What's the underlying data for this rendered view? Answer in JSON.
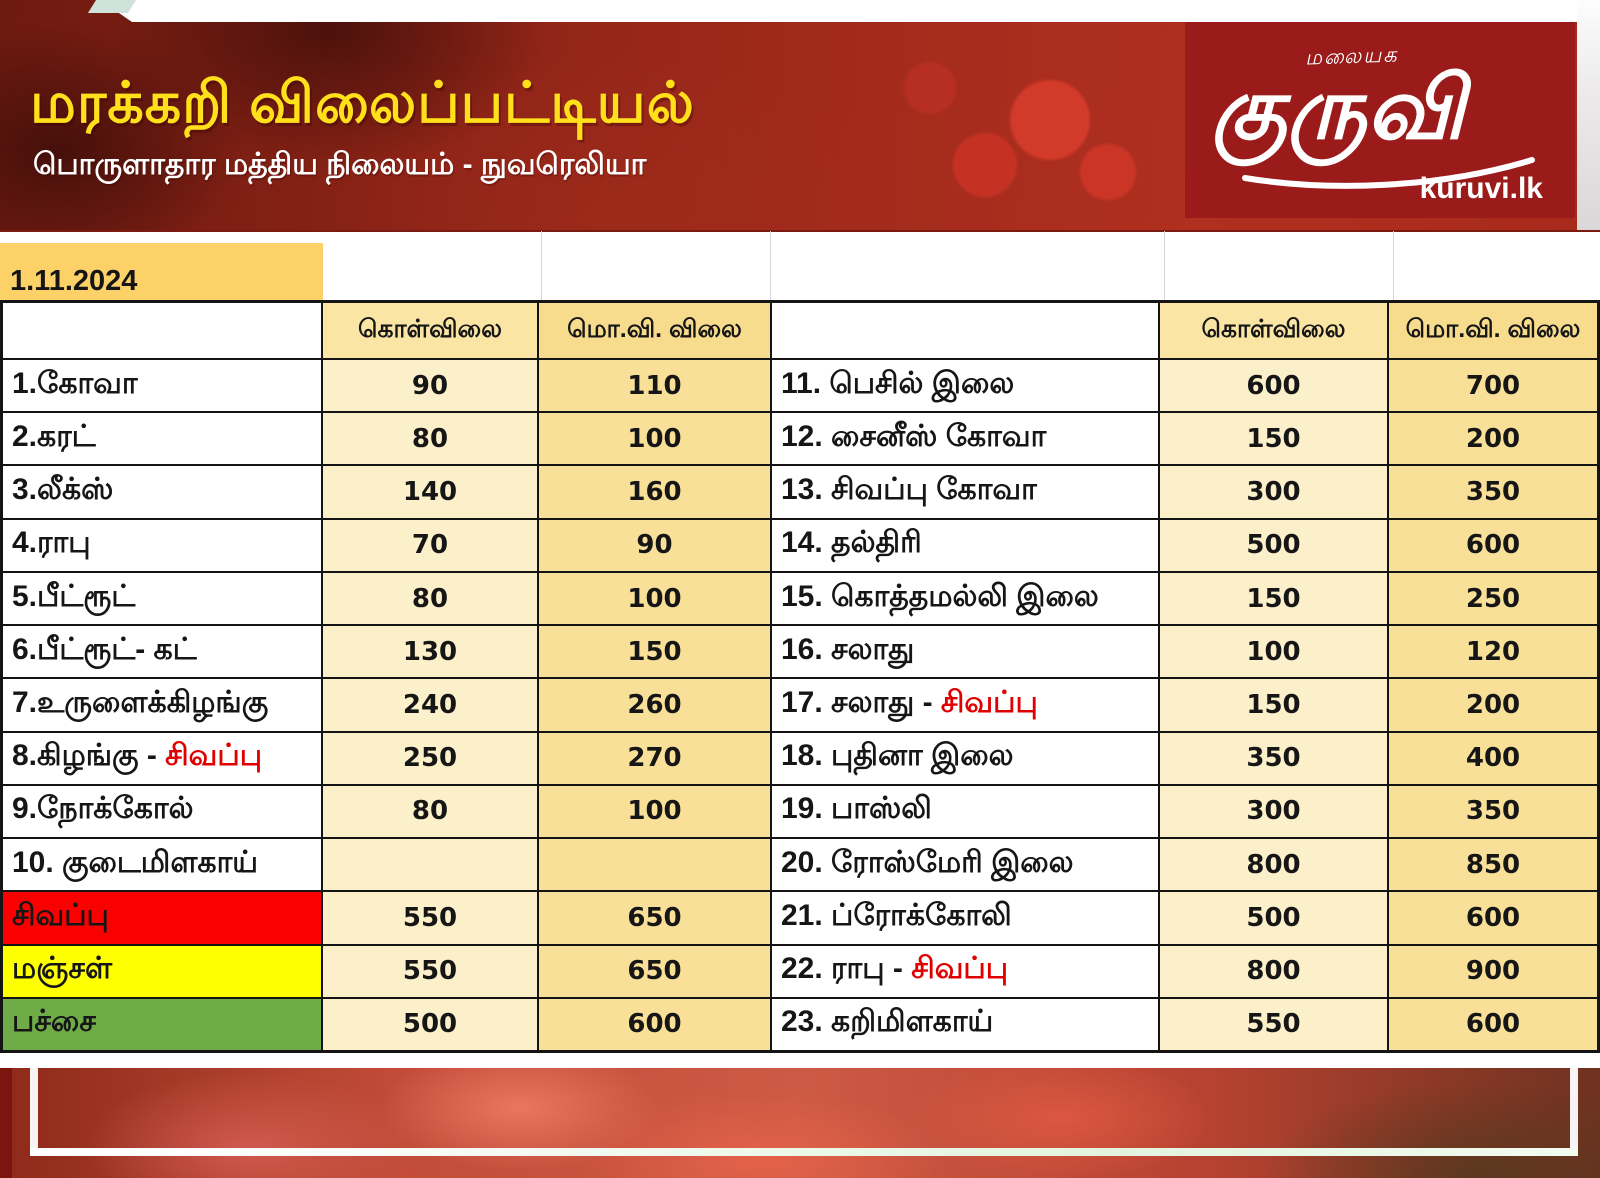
{
  "header": {
    "title": "மரக்கறி விலைப்பட்டியல்",
    "subtitle": "பொருளாதார மத்திய நிலையம் - நுவரெலியா",
    "date": "1.11.2024",
    "logo": {
      "top_text": "மலையக",
      "main_text": "குருவி",
      "site": "kuruvi.lk"
    }
  },
  "columns": {
    "buy": "கொள்விலை",
    "wholesale": "மொ.வி. விலை"
  },
  "colors": {
    "title_yellow": "#ffe01a",
    "logo_red": "#9b1a1a",
    "date_badge": "#fcd167",
    "buy_cell": "#fcf0cb",
    "wholesale_cell": "#f9e099",
    "red_text": "#e00000",
    "row_red": "#fb0000",
    "row_yellow": "#feff00",
    "row_green": "#6fac47"
  },
  "left_table": {
    "rows": [
      {
        "name": "1.கோவா",
        "red": "",
        "buy": "90",
        "ws": "110",
        "bg": ""
      },
      {
        "name": "2.கரட்",
        "red": "",
        "buy": "80",
        "ws": "100",
        "bg": ""
      },
      {
        "name": "3.லீக்ஸ்",
        "red": "",
        "buy": "140",
        "ws": "160",
        "bg": ""
      },
      {
        "name": "4.ராபு",
        "red": "",
        "buy": "70",
        "ws": "90",
        "bg": ""
      },
      {
        "name": "5.பீட்ரூட்",
        "red": "",
        "buy": "80",
        "ws": "100",
        "bg": ""
      },
      {
        "name": "6.பீட்ரூட்- கட்",
        "red": "",
        "buy": "130",
        "ws": "150",
        "bg": ""
      },
      {
        "name": "7.உருளைக்கிழங்கு",
        "red": "",
        "buy": "240",
        "ws": "260",
        "bg": ""
      },
      {
        "name": "8.கிழங்கு - ",
        "red": "சிவப்பு",
        "buy": "250",
        "ws": "270",
        "bg": ""
      },
      {
        "name": "9.நோக்கோல்",
        "red": "",
        "buy": "80",
        "ws": "100",
        "bg": ""
      },
      {
        "name": "10. குடைமிளகாய்",
        "red": "",
        "buy": "",
        "ws": "",
        "bg": ""
      },
      {
        "name": "சிவப்பு",
        "red": "",
        "buy": "550",
        "ws": "650",
        "bg": "#fb0000"
      },
      {
        "name": "மஞ்சள்",
        "red": "",
        "buy": "550",
        "ws": "650",
        "bg": "#feff00"
      },
      {
        "name": "பச்சை",
        "red": "",
        "buy": "500",
        "ws": "600",
        "bg": "#6fac47"
      }
    ]
  },
  "right_table": {
    "rows": [
      {
        "name": "11. பெசில் இலை",
        "red": "",
        "buy": "600",
        "ws": "700",
        "bg": ""
      },
      {
        "name": "12. சைனீஸ் கோவா",
        "red": "",
        "buy": "150",
        "ws": "200",
        "bg": ""
      },
      {
        "name": "13. சிவப்பு கோவா",
        "red": "",
        "buy": "300",
        "ws": "350",
        "bg": ""
      },
      {
        "name": "14. தல்திரி",
        "red": "",
        "buy": "500",
        "ws": "600",
        "bg": ""
      },
      {
        "name": "15. கொத்தமல்லி இலை",
        "red": "",
        "buy": "150",
        "ws": "250",
        "bg": ""
      },
      {
        "name": "16. சலாது",
        "red": "",
        "buy": "100",
        "ws": "120",
        "bg": ""
      },
      {
        "name": "17. சலாது - ",
        "red": "சிவப்பு",
        "buy": "150",
        "ws": "200",
        "bg": ""
      },
      {
        "name": "18. புதினா இலை",
        "red": "",
        "buy": "350",
        "ws": "400",
        "bg": ""
      },
      {
        "name": "19. பாஸ்லி",
        "red": "",
        "buy": "300",
        "ws": "350",
        "bg": ""
      },
      {
        "name": "20. ரோஸ்மேரி இலை",
        "red": "",
        "buy": "800",
        "ws": "850",
        "bg": ""
      },
      {
        "name": "21. ப்ரோக்கோலி",
        "red": "",
        "buy": "500",
        "ws": "600",
        "bg": ""
      },
      {
        "name": "22. ராபு - ",
        "red": "சிவப்பு",
        "buy": "800",
        "ws": "900",
        "bg": ""
      },
      {
        "name": "23. கறிமிளகாய்",
        "red": "",
        "buy": "550",
        "ws": "600",
        "bg": ""
      }
    ]
  }
}
